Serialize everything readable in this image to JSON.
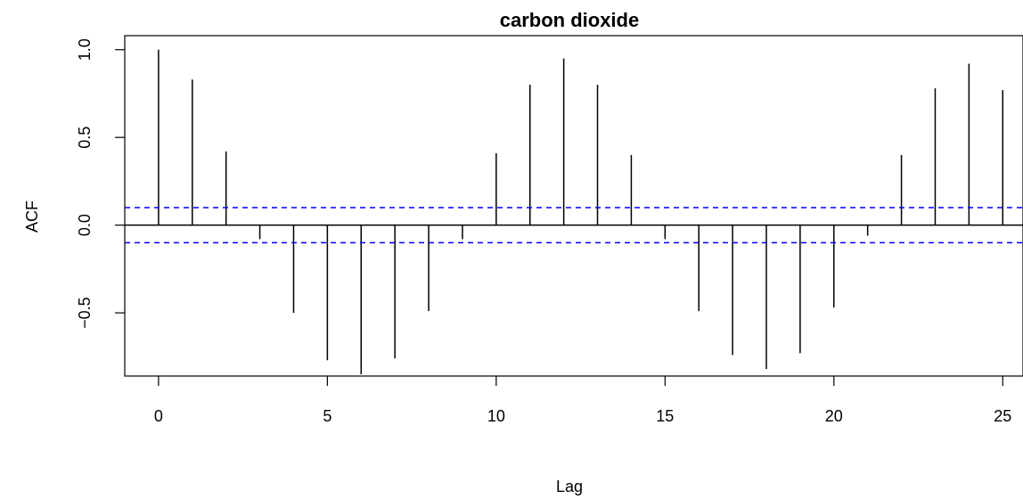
{
  "chart_data": {
    "type": "bar",
    "title": "carbon dioxide",
    "xlabel": "Lag",
    "ylabel": "ACF",
    "xlim": [
      -1,
      25.6
    ],
    "ylim": [
      -0.86,
      1.08
    ],
    "x_ticks": [
      0,
      5,
      10,
      15,
      20,
      25
    ],
    "x_tick_labels": [
      "0",
      "5",
      "10",
      "15",
      "20",
      "25"
    ],
    "y_ticks": [
      -0.5,
      0.0,
      0.5,
      1.0
    ],
    "y_tick_labels": [
      "−0.5",
      "0.0",
      "0.5",
      "1.0"
    ],
    "lags": [
      0,
      1,
      2,
      3,
      4,
      5,
      6,
      7,
      8,
      9,
      10,
      11,
      12,
      13,
      14,
      15,
      16,
      17,
      18,
      19,
      20,
      21,
      22,
      23,
      24,
      25
    ],
    "values": [
      1.0,
      0.83,
      0.42,
      -0.08,
      -0.5,
      -0.77,
      -0.85,
      -0.76,
      -0.49,
      -0.08,
      0.41,
      0.8,
      0.95,
      0.8,
      0.4,
      -0.08,
      -0.49,
      -0.74,
      -0.82,
      -0.73,
      -0.47,
      -0.06,
      0.4,
      0.78,
      0.92,
      0.77
    ],
    "confidence_bound": 0.1,
    "colors": {
      "spikes": "#000000",
      "confidence": "#0000ff",
      "zero_line": "#000000"
    }
  }
}
